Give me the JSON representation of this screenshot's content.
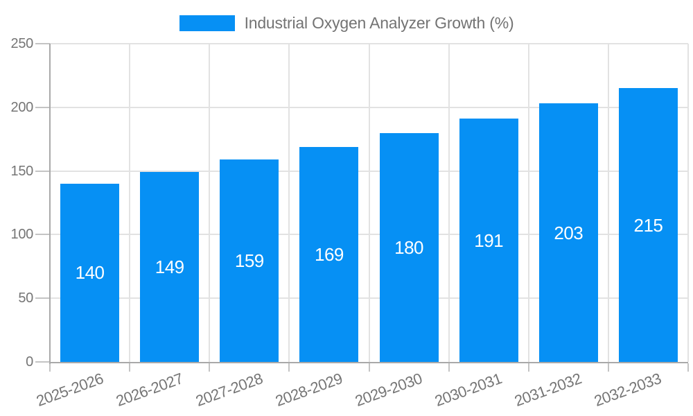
{
  "legend": {
    "label": "Industrial Oxygen Analyzer Growth (%)"
  },
  "chart_data": {
    "type": "bar",
    "title": "Industrial Oxygen Analyzer Growth (%)",
    "categories": [
      "2025-2026",
      "2026-2027",
      "2027-2028",
      "2028-2029",
      "2029-2030",
      "2030-2031",
      "2031-2032",
      "2032-2033"
    ],
    "values": [
      140,
      149,
      159,
      169,
      180,
      191,
      203,
      215
    ],
    "series_name": "Industrial Oxygen Analyzer Growth (%)",
    "xlabel": "",
    "ylabel": "",
    "ylim": [
      0,
      250
    ],
    "yticks": [
      0,
      50,
      100,
      150,
      200,
      250
    ],
    "grid": true,
    "legend_position": "top",
    "x_label_rotation_deg": -20,
    "colors": {
      "bar": "#0690f4",
      "bar_value_text": "#ffffff",
      "gridline": "#e2e2e2",
      "axis_line": "#a9a9a9",
      "tick_mark": "#c4c4c4",
      "tick_text": "#757575",
      "legend_text": "#737373",
      "background": "#ffffff"
    }
  }
}
